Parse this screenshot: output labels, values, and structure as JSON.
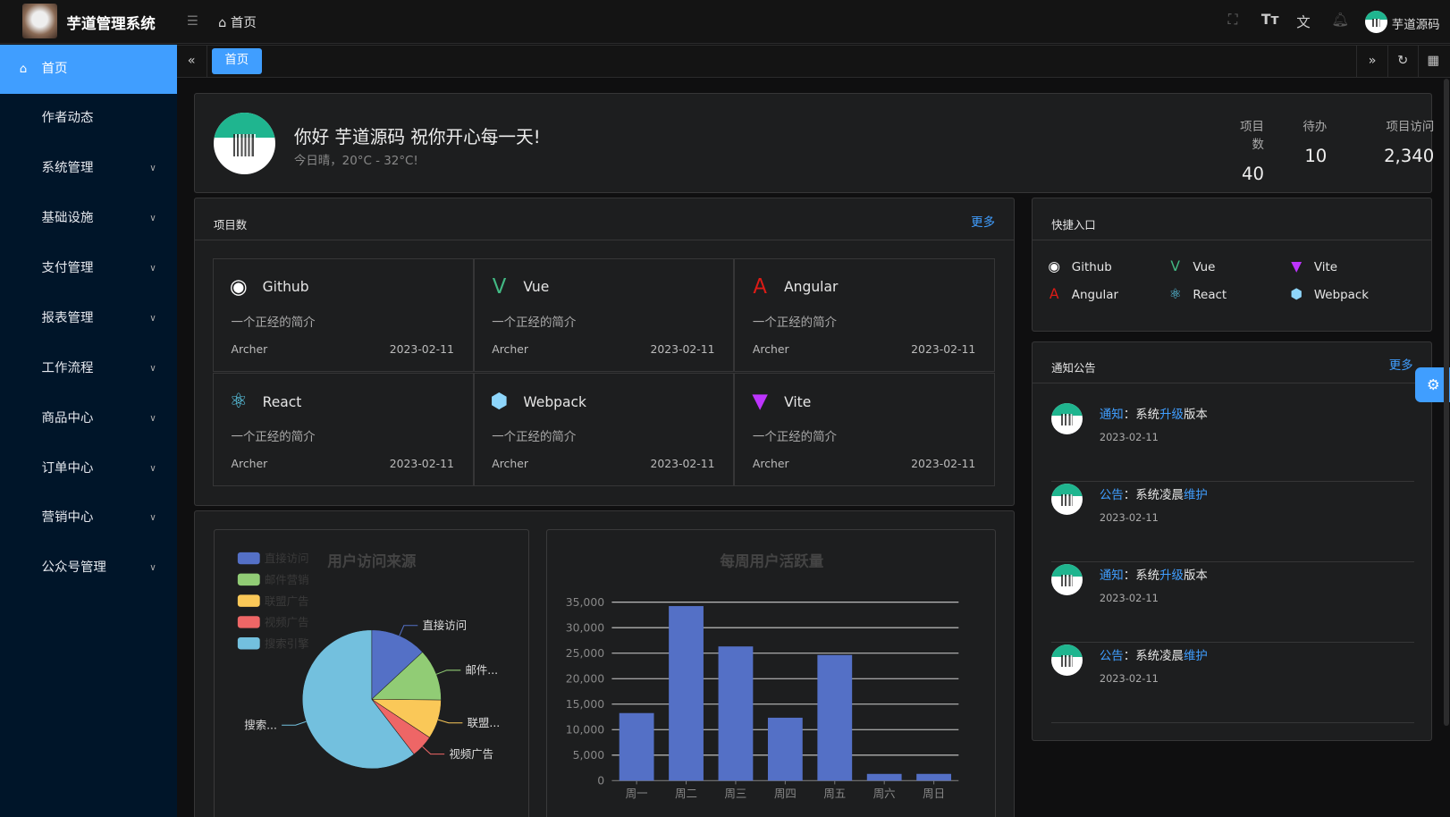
{
  "header": {
    "app_title": "芋道管理系统",
    "breadcrumb": "首页",
    "user_name": "芋道源码",
    "icons": [
      "fullscreen-icon",
      "font-size-icon",
      "translate-icon",
      "bell-icon"
    ]
  },
  "sidebar": {
    "items": [
      {
        "label": "首页",
        "active": true
      },
      {
        "label": "作者动态"
      },
      {
        "label": "系统管理",
        "expandable": true
      },
      {
        "label": "基础设施",
        "expandable": true
      },
      {
        "label": "支付管理",
        "expandable": true
      },
      {
        "label": "报表管理",
        "expandable": true
      },
      {
        "label": "工作流程",
        "expandable": true
      },
      {
        "label": "商品中心",
        "expandable": true
      },
      {
        "label": "订单中心",
        "expandable": true
      },
      {
        "label": "营销中心",
        "expandable": true
      },
      {
        "label": "公众号管理",
        "expandable": true
      }
    ]
  },
  "tabs": {
    "active": "首页"
  },
  "welcome": {
    "greeting": "你好 芋道源码 祝你开心每一天!",
    "weather": "今日晴，20°C - 32°C!",
    "stats": [
      {
        "label": "项目数",
        "value": "40"
      },
      {
        "label": "待办",
        "value": "10"
      },
      {
        "label": "项目访问",
        "value": "2,340"
      }
    ]
  },
  "projects": {
    "title": "项目数",
    "more": "更多",
    "items": [
      {
        "name": "Github",
        "icon": "github-icon",
        "color": "#ffffff",
        "desc": "一个正经的简介",
        "author": "Archer",
        "date": "2023-02-11"
      },
      {
        "name": "Vue",
        "icon": "vue-icon",
        "color": "#42b883",
        "desc": "一个正经的简介",
        "author": "Archer",
        "date": "2023-02-11"
      },
      {
        "name": "Angular",
        "icon": "angular-icon",
        "color": "#dd1b16",
        "desc": "一个正经的简介",
        "author": "Archer",
        "date": "2023-02-11"
      },
      {
        "name": "React",
        "icon": "react-icon",
        "color": "#61dafb",
        "desc": "一个正经的简介",
        "author": "Archer",
        "date": "2023-02-11"
      },
      {
        "name": "Webpack",
        "icon": "webpack-icon",
        "color": "#8ed6fb",
        "desc": "一个正经的简介",
        "author": "Archer",
        "date": "2023-02-11"
      },
      {
        "name": "Vite",
        "icon": "vite-icon",
        "color": "#bd34fe",
        "desc": "一个正经的简介",
        "author": "Archer",
        "date": "2023-02-11"
      }
    ]
  },
  "shortcuts": {
    "title": "快捷入口",
    "items": [
      {
        "name": "Github",
        "icon": "github-icon",
        "color": "#ffffff"
      },
      {
        "name": "Vue",
        "icon": "vue-icon",
        "color": "#42b883"
      },
      {
        "name": "Vite",
        "icon": "vite-icon",
        "color": "#bd34fe"
      },
      {
        "name": "Angular",
        "icon": "angular-icon",
        "color": "#dd1b16"
      },
      {
        "name": "React",
        "icon": "react-icon",
        "color": "#61dafb"
      },
      {
        "name": "Webpack",
        "icon": "webpack-icon",
        "color": "#8ed6fb"
      }
    ]
  },
  "notices": {
    "title": "通知公告",
    "more": "更多",
    "items": [
      {
        "type": "通知",
        "sep": "：",
        "text1": "系统",
        "hl": "升级",
        "text2": "版本",
        "date": "2023-02-11"
      },
      {
        "type": "公告",
        "sep": "：",
        "text1": "系统凌晨",
        "hl": "维护",
        "text2": "",
        "date": "2023-02-11"
      },
      {
        "type": "通知",
        "sep": "：",
        "text1": "系统",
        "hl": "升级",
        "text2": "版本",
        "date": "2023-02-11"
      },
      {
        "type": "公告",
        "sep": "：",
        "text1": "系统凌晨",
        "hl": "维护",
        "text2": "",
        "date": "2023-02-11"
      }
    ]
  },
  "chart_data": [
    {
      "type": "pie",
      "title": "用户访问来源",
      "legend_position": "top-left",
      "categories": [
        "直接访问",
        "邮件营销",
        "联盟广告",
        "视频广告",
        "搜索引擎"
      ],
      "values": [
        335,
        310,
        234,
        135,
        1548
      ],
      "slice_labels": [
        "直接访问",
        "邮件...",
        "联盟...",
        "视频广告",
        "搜索..."
      ],
      "colors": [
        "#5470c6",
        "#91cc75",
        "#fac858",
        "#ee6666",
        "#73c0de"
      ]
    },
    {
      "type": "bar",
      "title": "每周用户活跃量",
      "categories": [
        "周一",
        "周二",
        "周三",
        "周四",
        "周五",
        "周六",
        "周日"
      ],
      "values": [
        13253,
        34235,
        26321,
        12340,
        24643,
        1322,
        1324
      ],
      "ylim": [
        0,
        35000
      ],
      "yticks": [
        "0",
        "5,000",
        "10,000",
        "15,000",
        "20,000",
        "25,000",
        "30,000",
        "35,000"
      ],
      "grid": true,
      "color": "#5470c6"
    }
  ]
}
